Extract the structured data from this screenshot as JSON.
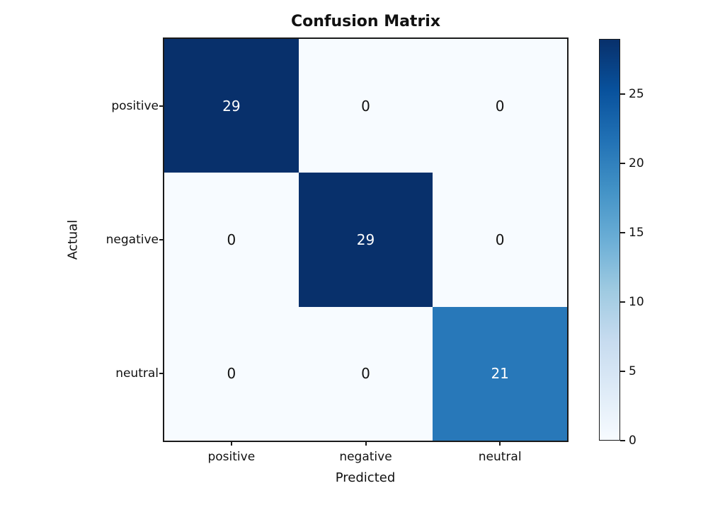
{
  "chart_data": {
    "type": "heatmap",
    "title": "Confusion Matrix",
    "xlabel": "Predicted",
    "ylabel": "Actual",
    "x_categories": [
      "positive",
      "negative",
      "neutral"
    ],
    "y_categories": [
      "positive",
      "negative",
      "neutral"
    ],
    "matrix": [
      [
        29,
        0,
        0
      ],
      [
        0,
        29,
        0
      ],
      [
        0,
        0,
        21
      ]
    ],
    "vmin": 0,
    "vmax": 29,
    "colormap_name": "Blues",
    "colormap_stops": [
      "#f7fbff",
      "#deebf7",
      "#c6dbef",
      "#9ecae1",
      "#6baed6",
      "#4292c6",
      "#2171b5",
      "#08519c",
      "#08306b"
    ],
    "cell_text_color_light": "#ffffff",
    "cell_text_color_dark": "#111111",
    "colorbar_ticks": [
      0,
      5,
      10,
      15,
      20,
      25
    ],
    "legend_position": "right-colorbar",
    "grid": false
  }
}
